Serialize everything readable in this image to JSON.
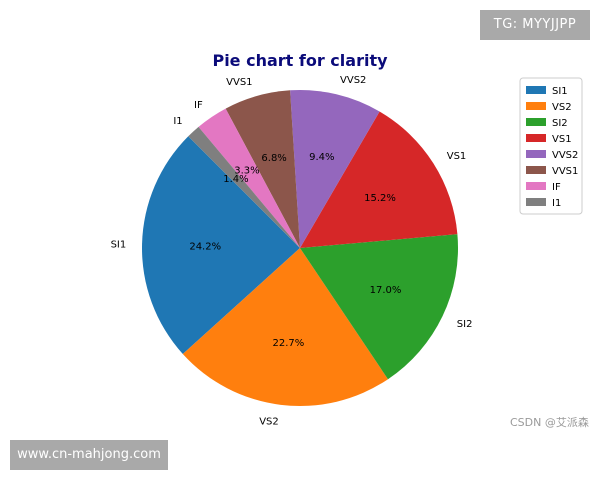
{
  "chart_data": {
    "type": "pie",
    "title": "Pie chart for clarity",
    "title_color": "#0b0b7a",
    "categories": [
      "SI1",
      "VS2",
      "SI2",
      "VS1",
      "VVS2",
      "VVS1",
      "IF",
      "I1"
    ],
    "values": [
      24.2,
      22.7,
      17.0,
      15.2,
      9.4,
      6.8,
      3.3,
      1.4
    ],
    "value_labels": [
      "24.2%",
      "22.7%",
      "17.0%",
      "15.2%",
      "9.4%",
      "6.8%",
      "3.3%",
      "1.4%"
    ],
    "colors": [
      "#1f77b4",
      "#ff7f0e",
      "#2ca02c",
      "#d62728",
      "#9467bd",
      "#8c564b",
      "#e377c2",
      "#7f7f7f"
    ],
    "start_angle_deg": 135,
    "direction": "counterclockwise",
    "legend": {
      "position": "top-right",
      "entries": [
        "SI1",
        "VS2",
        "SI2",
        "VS1",
        "VVS2",
        "VVS1",
        "IF",
        "I1"
      ]
    }
  },
  "watermarks": {
    "tg": "TG: MYYJJPP",
    "site": "www.cn-mahjong.com",
    "csdn": "CSDN @艾派森"
  }
}
